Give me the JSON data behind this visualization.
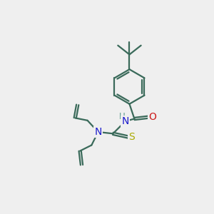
{
  "bg_color": "#efefef",
  "bond_color": "#3a6a5a",
  "N_color": "#1a1acc",
  "O_color": "#cc1a1a",
  "S_color": "#aaaa00",
  "H_color": "#5a9a8a",
  "line_width": 1.6,
  "figsize": [
    3.0,
    3.0
  ],
  "dpi": 100,
  "xlim": [
    0,
    10
  ],
  "ylim": [
    0,
    10
  ]
}
